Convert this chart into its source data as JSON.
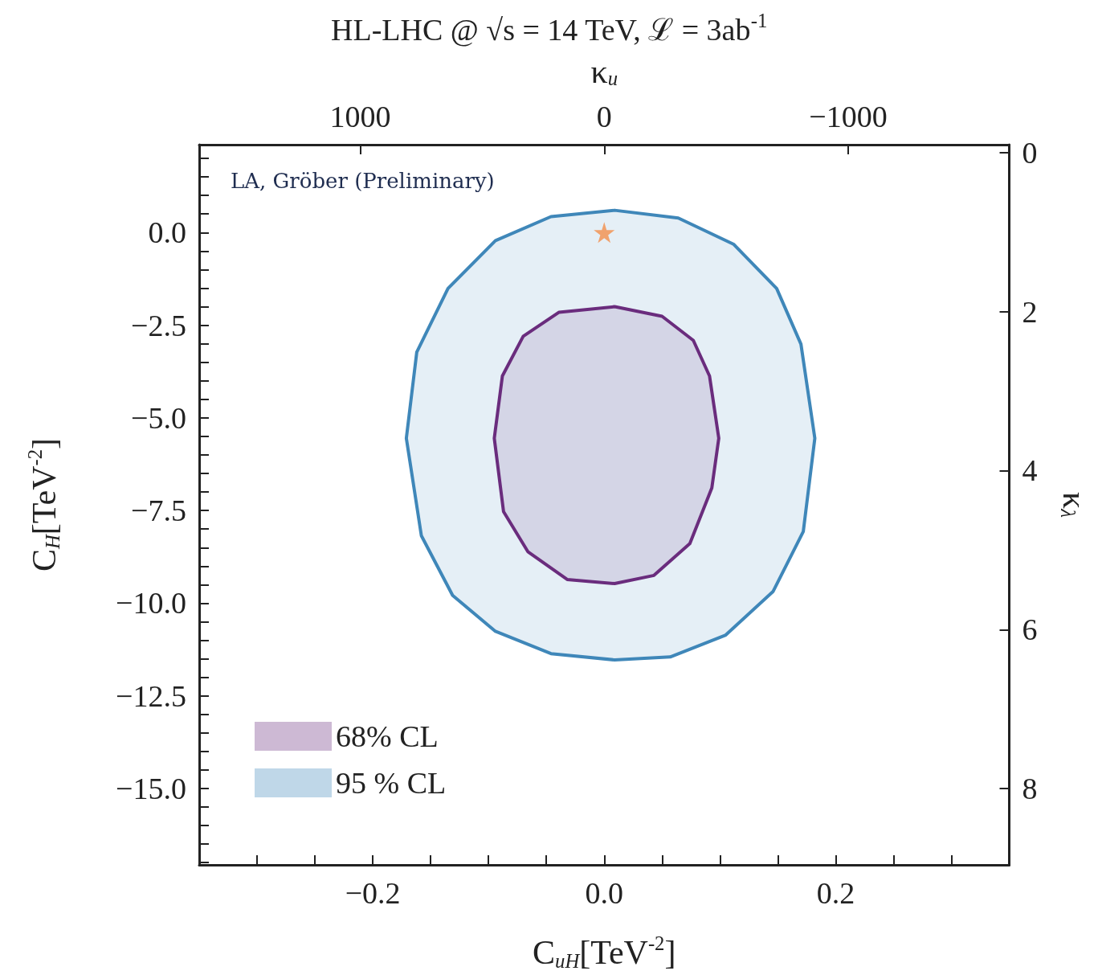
{
  "chart_data": {
    "type": "area",
    "title": "HL-LHC @ √s = 14 TeV, ℒ = 3ab$^{-1}$",
    "xlabel": "C$_{uH}$[TeV$^{-2}$]",
    "ylabel": "C$_{H}$[TeV$^{-2}$]",
    "x2label": "κ$_{u}$",
    "y2label": "κ$_{λ}$",
    "annotations": [
      "LA, Gröber (Preliminary)"
    ],
    "xlim": [
      -0.35,
      0.35
    ],
    "xticks": [
      {
        "value": -0.3,
        "label": null
      },
      {
        "value": -0.25,
        "label": null
      },
      {
        "value": -0.2,
        "label": "−0.2"
      },
      {
        "value": -0.15,
        "label": null
      },
      {
        "value": -0.1,
        "label": null
      },
      {
        "value": -0.05,
        "label": null
      },
      {
        "value": 0,
        "label": "0.0"
      },
      {
        "value": 0.05,
        "label": null
      },
      {
        "value": 0.1,
        "label": null
      },
      {
        "value": 0.15,
        "label": null
      },
      {
        "value": 0.2,
        "label": "0.2"
      },
      {
        "value": 0.25,
        "label": null
      },
      {
        "value": 0.3,
        "label": null
      }
    ],
    "ylim": [
      -17.06,
      2.37
    ],
    "yticks": [
      {
        "value": 2,
        "label": null
      },
      {
        "value": 1.5,
        "label": null
      },
      {
        "value": 1,
        "label": null
      },
      {
        "value": 0.5,
        "label": null
      },
      {
        "value": 0,
        "label": "0.0"
      },
      {
        "value": -0.5,
        "label": null
      },
      {
        "value": -1,
        "label": null
      },
      {
        "value": -1.5,
        "label": null
      },
      {
        "value": -2,
        "label": null
      },
      {
        "value": -2.5,
        "label": "−2.5"
      },
      {
        "value": -3,
        "label": null
      },
      {
        "value": -3.5,
        "label": null
      },
      {
        "value": -4,
        "label": null
      },
      {
        "value": -4.5,
        "label": null
      },
      {
        "value": -5,
        "label": "−5.0"
      },
      {
        "value": -5.5,
        "label": null
      },
      {
        "value": -6,
        "label": null
      },
      {
        "value": -6.5,
        "label": null
      },
      {
        "value": -7,
        "label": null
      },
      {
        "value": -7.5,
        "label": "−7.5"
      },
      {
        "value": -8,
        "label": null
      },
      {
        "value": -8.5,
        "label": null
      },
      {
        "value": -9,
        "label": null
      },
      {
        "value": -9.5,
        "label": null
      },
      {
        "value": -10,
        "label": "−10.0"
      },
      {
        "value": -10.5,
        "label": null
      },
      {
        "value": -11,
        "label": null
      },
      {
        "value": -11.5,
        "label": null
      },
      {
        "value": -12,
        "label": null
      },
      {
        "value": -12.5,
        "label": "−12.5"
      },
      {
        "value": -13,
        "label": null
      },
      {
        "value": -13.5,
        "label": null
      },
      {
        "value": -14,
        "label": null
      },
      {
        "value": -14.5,
        "label": null
      },
      {
        "value": -15,
        "label": "−15.0"
      },
      {
        "value": -15.5,
        "label": null
      },
      {
        "value": -16,
        "label": null
      },
      {
        "value": -16.5,
        "label": null
      },
      {
        "value": -17,
        "label": null
      }
    ],
    "x2lim": [
      1660,
      -1660
    ],
    "x2ticks": [
      {
        "value": 1000,
        "label": "1000"
      },
      {
        "value": 0,
        "label": "0"
      },
      {
        "value": -1000,
        "label": "−1000"
      }
    ],
    "y2lim": [
      8.96,
      -0.1
    ],
    "y2ticks": [
      0,
      2,
      4,
      6,
      8
    ],
    "grid": false,
    "legend": "bottom left",
    "series": [
      {
        "name": "68% CL",
        "color": "#6a2c7d",
        "x": [
          0.009,
          0.05,
          0.077,
          0.091,
          0.099,
          0.093,
          0.074,
          0.043,
          0.009,
          -0.032,
          -0.066,
          -0.087,
          -0.095,
          -0.088,
          -0.07,
          -0.039
        ],
        "values": [
          -2.0,
          -2.26,
          -2.91,
          -3.87,
          -5.55,
          -6.89,
          -8.39,
          -9.25,
          -9.47,
          -9.36,
          -8.61,
          -7.53,
          -5.55,
          -3.87,
          -2.8,
          -2.15
        ]
      },
      {
        "name": "95 % CL",
        "color": "#3f87b9",
        "x": [
          0.009,
          0.064,
          0.112,
          0.149,
          0.17,
          0.182,
          0.172,
          0.146,
          0.105,
          0.057,
          0.009,
          -0.046,
          -0.094,
          -0.131,
          -0.158,
          -0.171,
          -0.162,
          -0.135,
          -0.094,
          -0.046
        ],
        "values": [
          0.6,
          0.39,
          -0.32,
          -1.51,
          -3.01,
          -5.55,
          -8.07,
          -9.68,
          -10.86,
          -11.45,
          -11.53,
          -11.36,
          -10.76,
          -9.79,
          -8.18,
          -5.55,
          -3.23,
          -1.51,
          -0.22,
          0.43
        ]
      },
      {
        "type": "scatter",
        "marker": "star",
        "color": "#f28e4b",
        "x": [
          0
        ],
        "values": [
          0
        ]
      }
    ]
  }
}
